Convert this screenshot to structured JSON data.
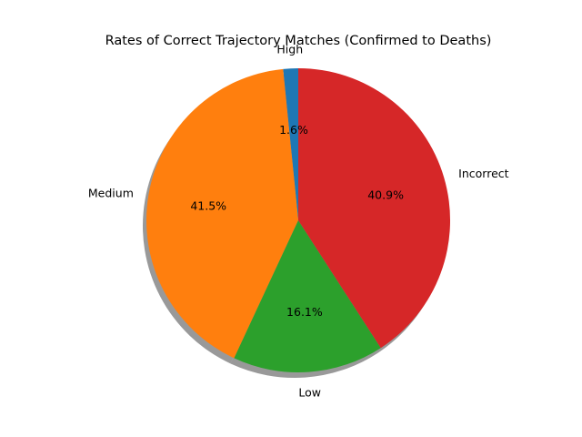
{
  "chart_data": {
    "type": "pie",
    "title": "Rates of Correct Trajectory Matches (Confirmed to Deaths)",
    "categories": [
      "High",
      "Medium",
      "Low",
      "Incorrect"
    ],
    "values": [
      1.6,
      41.5,
      16.1,
      40.9
    ],
    "value_labels": [
      "1.6%",
      "41.5%",
      "16.1%",
      "40.9%"
    ],
    "colors": [
      "#1f77b4",
      "#ff7f0e",
      "#2ca02c",
      "#d62728"
    ],
    "start_angle_deg": 90,
    "direction": "counterclockwise",
    "shadow": true
  }
}
